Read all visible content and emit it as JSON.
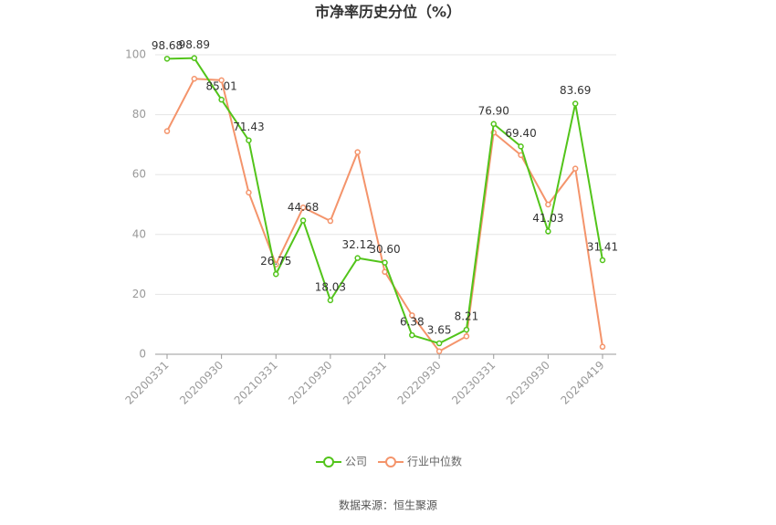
{
  "chart_data": {
    "type": "line",
    "title": "市净率历史分位（%）",
    "categories": [
      "20200331",
      null,
      "20200930",
      null,
      "20210331",
      null,
      "20210930",
      null,
      "20220331",
      null,
      "20220930",
      null,
      "20230331",
      null,
      "20230930",
      null,
      "20240419"
    ],
    "series": [
      {
        "name": "公司",
        "color": "#52c41a",
        "values": [
          98.68,
          98.89,
          85.01,
          71.43,
          26.75,
          44.68,
          18.03,
          32.12,
          30.6,
          6.38,
          3.65,
          8.21,
          76.9,
          69.4,
          41.03,
          83.69,
          31.41
        ],
        "value_labels": [
          "98.68",
          "98.89",
          "85.01",
          "71.43",
          "26.75",
          "44.68",
          "18.03",
          "32.12",
          "30.60",
          "6.38",
          "3.65",
          "8.21",
          "76.90",
          "69.40",
          "41.03",
          "83.69",
          "31.41"
        ]
      },
      {
        "name": "行业中位数",
        "color": "#f4946b",
        "values": [
          74.5,
          92,
          91.5,
          54,
          30,
          49,
          44.5,
          67.5,
          27.5,
          13,
          1,
          6,
          74,
          66.5,
          50,
          62,
          2.5
        ]
      }
    ],
    "ylim": [
      0,
      100
    ],
    "yticks": [
      0,
      20,
      40,
      60,
      80,
      100
    ],
    "grid": true,
    "source": "数据来源：恒生聚源"
  }
}
